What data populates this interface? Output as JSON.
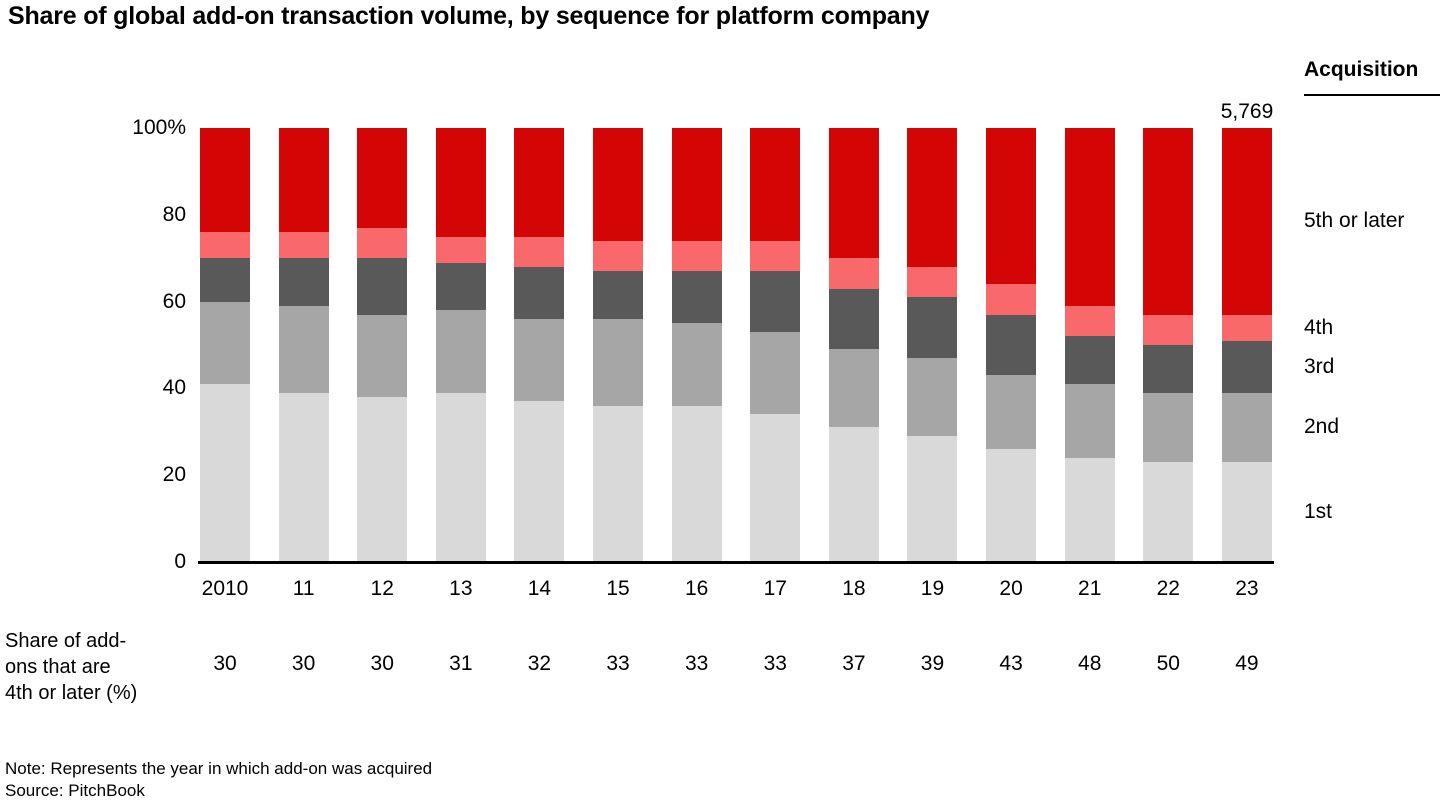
{
  "title": "Share of global add-on transaction volume, by sequence for platform company",
  "legend": {
    "header": "Acquisition"
  },
  "subrow": {
    "label_lines": [
      "Share of add-",
      "ons that are",
      "4th or later (%)"
    ],
    "values": [
      30,
      30,
      30,
      31,
      32,
      33,
      33,
      33,
      37,
      39,
      43,
      48,
      50,
      49
    ]
  },
  "note": "Note: Represents the year in which add-on was acquired",
  "source": "Source: PitchBook",
  "chart_data": {
    "type": "bar",
    "stacked": true,
    "percent": true,
    "title": "Share of global add-on transaction volume, by sequence for platform company",
    "categories": [
      "2010",
      "11",
      "12",
      "13",
      "14",
      "15",
      "16",
      "17",
      "18",
      "19",
      "20",
      "21",
      "22",
      "23"
    ],
    "series": [
      {
        "name": "1st",
        "color": "#d9d9d9",
        "values": [
          41,
          39,
          38,
          39,
          37,
          36,
          36,
          34,
          31,
          29,
          26,
          24,
          23,
          23
        ]
      },
      {
        "name": "2nd",
        "color": "#a6a6a6",
        "values": [
          19,
          20,
          19,
          19,
          19,
          20,
          19,
          19,
          18,
          18,
          17,
          17,
          16,
          16
        ]
      },
      {
        "name": "3rd",
        "color": "#595959",
        "values": [
          10,
          11,
          13,
          11,
          12,
          11,
          12,
          14,
          14,
          14,
          14,
          11,
          11,
          12
        ]
      },
      {
        "name": "4th",
        "color": "#f9696c",
        "values": [
          6,
          6,
          7,
          6,
          7,
          7,
          7,
          7,
          7,
          7,
          7,
          7,
          7,
          6
        ]
      },
      {
        "name": "5th or later",
        "color": "#d30505",
        "values": [
          24,
          24,
          23,
          25,
          25,
          26,
          26,
          26,
          30,
          32,
          36,
          41,
          43,
          43
        ]
      }
    ],
    "y_ticks": [
      "100%",
      "80",
      "60",
      "40",
      "20",
      "0"
    ],
    "ylim": [
      0,
      100
    ],
    "xlabel": "",
    "ylabel": "",
    "legend_position": "right",
    "grid": false,
    "total_label": {
      "category": "23",
      "text": "5,769"
    }
  }
}
